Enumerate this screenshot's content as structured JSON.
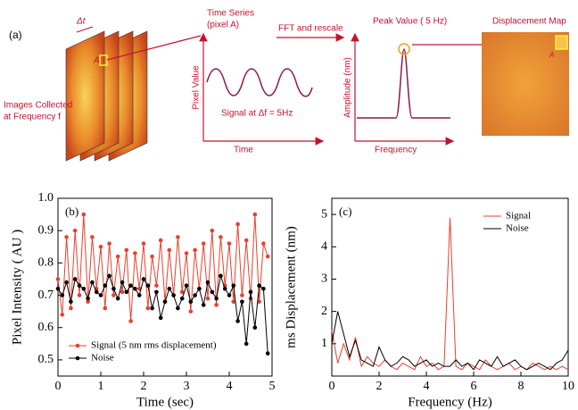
{
  "diagram": {
    "panel_label": "(a)",
    "delta_t": "Δt",
    "pixel_marker": "A",
    "images_line1": "Images Collected",
    "images_line2": "at Frequency f",
    "time_series_line1": "Time Series",
    "time_series_line2": "(pixel A)",
    "pixel_value_axis": "Pixel Value",
    "signal_caption": "Signal at Δf = 5Hz",
    "time_axis": "Time",
    "fft_step": "FFT and rescale",
    "peak_caption": "Peak Value ( 5 Hz)",
    "amplitude_axis": "Amplitude (nm)",
    "frequency_axis": "Frequency",
    "map_title": "Displacement Map",
    "map_marker": "A"
  },
  "chart_data": [
    {
      "type": "line",
      "panel_label": "(b)",
      "x_label": "Time (sec)",
      "y_label": "Pixel Intensity ( AU )",
      "x": [
        0,
        0.1,
        0.2,
        0.3,
        0.4,
        0.5,
        0.6,
        0.7,
        0.8,
        0.9,
        1,
        1.1,
        1.2,
        1.3,
        1.4,
        1.5,
        1.6,
        1.7,
        1.8,
        1.9,
        2,
        2.1,
        2.2,
        2.3,
        2.4,
        2.5,
        2.6,
        2.7,
        2.8,
        2.9,
        3,
        3.1,
        3.2,
        3.3,
        3.4,
        3.5,
        3.6,
        3.7,
        3.8,
        3.9,
        4,
        4.1,
        4.2,
        4.3,
        4.4,
        4.5,
        4.6,
        4.7,
        4.8,
        4.9
      ],
      "series": [
        {
          "name": "Signal (5 nm rms displacement)",
          "color": "#e8412e",
          "values": [
            0.75,
            0.64,
            0.88,
            0.66,
            0.9,
            0.7,
            0.95,
            0.68,
            0.88,
            0.72,
            0.85,
            0.66,
            0.86,
            0.7,
            0.82,
            0.71,
            0.84,
            0.62,
            0.83,
            0.72,
            0.86,
            0.66,
            0.82,
            0.73,
            0.87,
            0.68,
            0.84,
            0.7,
            0.88,
            0.71,
            0.83,
            0.65,
            0.84,
            0.72,
            0.86,
            0.69,
            0.9,
            0.67,
            0.88,
            0.73,
            0.86,
            0.68,
            0.92,
            0.7,
            0.87,
            0.69,
            0.95,
            0.68,
            0.86,
            0.82
          ]
        },
        {
          "name": "Noise",
          "color": "#000000",
          "values": [
            0.72,
            0.7,
            0.74,
            0.68,
            0.75,
            0.73,
            0.72,
            0.69,
            0.74,
            0.71,
            0.7,
            0.73,
            0.76,
            0.72,
            0.69,
            0.74,
            0.71,
            0.73,
            0.72,
            0.7,
            0.75,
            0.73,
            0.66,
            0.71,
            0.63,
            0.68,
            0.72,
            0.7,
            0.66,
            0.69,
            0.73,
            0.68,
            0.7,
            0.72,
            0.67,
            0.74,
            0.71,
            0.69,
            0.76,
            0.72,
            0.7,
            0.73,
            0.62,
            0.68,
            0.55,
            0.71,
            0.6,
            0.73,
            0.72,
            0.52
          ]
        }
      ],
      "markers": true,
      "xlim": [
        0,
        5
      ],
      "xticks": [
        0,
        1,
        2,
        3,
        4,
        5
      ],
      "ylim": [
        0.45,
        1.0
      ],
      "yticks": [
        0.5,
        0.6,
        0.7,
        0.8,
        0.9,
        {
          "value": 1,
          "label": "1.0"
        }
      ],
      "legend": "lower left"
    },
    {
      "type": "line",
      "panel_label": "(c)",
      "x_label": "Frequency (Hz)",
      "y_label": "ms Displacement (nm)",
      "x": [
        0,
        0.25,
        0.5,
        0.75,
        1,
        1.25,
        1.5,
        1.75,
        2,
        2.25,
        2.5,
        2.75,
        3,
        3.25,
        3.5,
        3.75,
        4,
        4.25,
        4.5,
        4.75,
        5,
        5.25,
        5.5,
        5.75,
        6,
        6.25,
        6.5,
        6.75,
        7,
        7.25,
        7.5,
        7.75,
        8,
        8.25,
        8.5,
        8.75,
        9,
        9.25,
        9.5,
        9.75,
        10
      ],
      "series": [
        {
          "name": "Signal",
          "color": "#e8412e",
          "values": [
            1.4,
            0.4,
            1.0,
            0.5,
            1.2,
            0.3,
            0.6,
            0.4,
            0.3,
            0.5,
            0.3,
            0.2,
            0.4,
            0.3,
            0.2,
            0.6,
            0.3,
            0.4,
            0.2,
            0.3,
            4.9,
            0.3,
            0.2,
            0.4,
            0.3,
            0.2,
            0.5,
            0.3,
            0.2,
            0.3,
            0.4,
            0.2,
            0.3,
            0.2,
            0.4,
            0.3,
            0.2,
            0.3,
            0.2,
            0.3,
            0.2
          ]
        },
        {
          "name": "Noise",
          "color": "#000000",
          "values": [
            1.0,
            2.0,
            1.3,
            0.6,
            1.1,
            0.5,
            0.4,
            0.3,
            0.9,
            0.5,
            0.3,
            0.4,
            0.6,
            0.5,
            0.3,
            0.4,
            0.5,
            0.3,
            0.4,
            0.3,
            0.3,
            0.5,
            0.3,
            0.4,
            0.2,
            0.5,
            0.4,
            0.3,
            0.6,
            0.3,
            0.4,
            0.5,
            0.3,
            0.2,
            0.3,
            0.4,
            0.3,
            0.2,
            0.4,
            0.5,
            0.8
          ]
        }
      ],
      "markers": false,
      "xlim": [
        0,
        10
      ],
      "xticks": [
        0,
        2,
        4,
        6,
        8,
        10
      ],
      "ylim": [
        0,
        5.5
      ],
      "yticks": [
        1,
        2,
        3,
        4,
        5
      ],
      "legend": "upper right"
    }
  ]
}
